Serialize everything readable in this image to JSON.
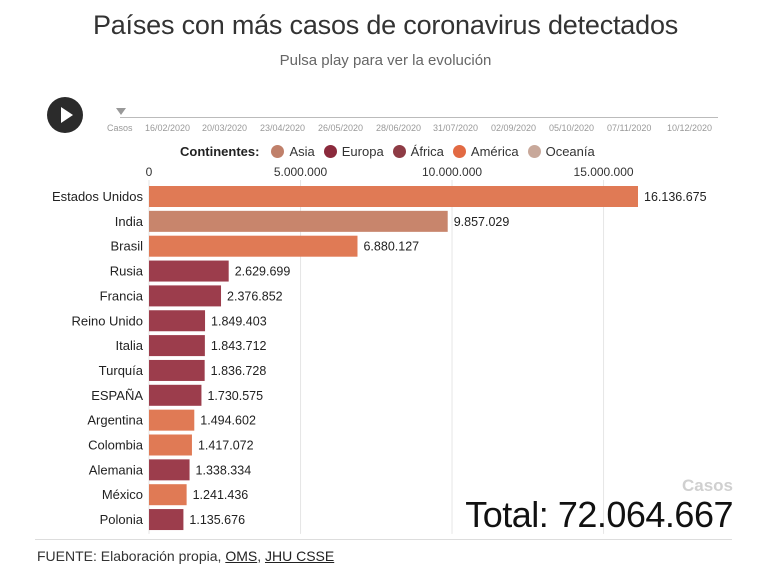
{
  "header": {
    "title": "Países con más casos de coronavirus detectados",
    "subtitle": "Pulsa play para ver la evolución"
  },
  "timeline": {
    "label": "Casos",
    "ticks": [
      "16/02/2020",
      "20/03/2020",
      "23/04/2020",
      "26/05/2020",
      "28/06/2020",
      "31/07/2020",
      "02/09/2020",
      "05/10/2020",
      "07/11/2020",
      "10/12/2020"
    ]
  },
  "legend": {
    "title": "Continentes:",
    "items": [
      {
        "label": "Asia",
        "color": "#C0806A"
      },
      {
        "label": "Europa",
        "color": "#8B2A3C"
      },
      {
        "label": "África",
        "color": "#8E3B45"
      },
      {
        "label": "América",
        "color": "#E26A43"
      },
      {
        "label": "Oceanía",
        "color": "#C8A89A"
      }
    ]
  },
  "chart_data": {
    "type": "bar",
    "orientation": "horizontal",
    "x_ticks": [
      0,
      5000000,
      10000000,
      15000000
    ],
    "x_tick_labels": [
      "0",
      "5.000.000",
      "10.000.000",
      "15.000.000"
    ],
    "xlim": [
      0,
      16136675
    ],
    "grid": true,
    "categories": [
      "Estados Unidos",
      "India",
      "Brasil",
      "Rusia",
      "Francia",
      "Reino Unido",
      "Italia",
      "Turquía",
      "ESPAÑA",
      "Argentina",
      "Colombia",
      "Alemania",
      "México",
      "Polonia"
    ],
    "values": [
      16136675,
      9857029,
      6880127,
      2629699,
      2376852,
      1849403,
      1843712,
      1836728,
      1730575,
      1494602,
      1417072,
      1338334,
      1241436,
      1135676
    ],
    "value_labels": [
      "16.136.675",
      "9.857.029",
      "6.880.127",
      "2.629.699",
      "2.376.852",
      "1.849.403",
      "1.843.712",
      "1.836.728",
      "1.730.575",
      "1.494.602",
      "1.417.072",
      "1.338.334",
      "1.241.436",
      "1.135.676"
    ],
    "continents": [
      "América",
      "Asia",
      "América",
      "Europa",
      "Europa",
      "Europa",
      "Europa",
      "Europa",
      "Europa",
      "América",
      "América",
      "Europa",
      "América",
      "Europa"
    ],
    "colors": [
      "#E07A55",
      "#C8856C",
      "#E07A55",
      "#9C3D4C",
      "#9C3D4C",
      "#9C3D4C",
      "#9C3D4C",
      "#9C3D4C",
      "#9C3D4C",
      "#E07A55",
      "#E07A55",
      "#9C3D4C",
      "#E07A55",
      "#9C3D4C"
    ]
  },
  "totals": {
    "label": "Casos",
    "total_text": "Total: 72.064.667"
  },
  "footer": {
    "prefix": "FUENTE: Elaboración propia, ",
    "link1": "OMS",
    "sep": ", ",
    "link2": "JHU CSSE"
  }
}
